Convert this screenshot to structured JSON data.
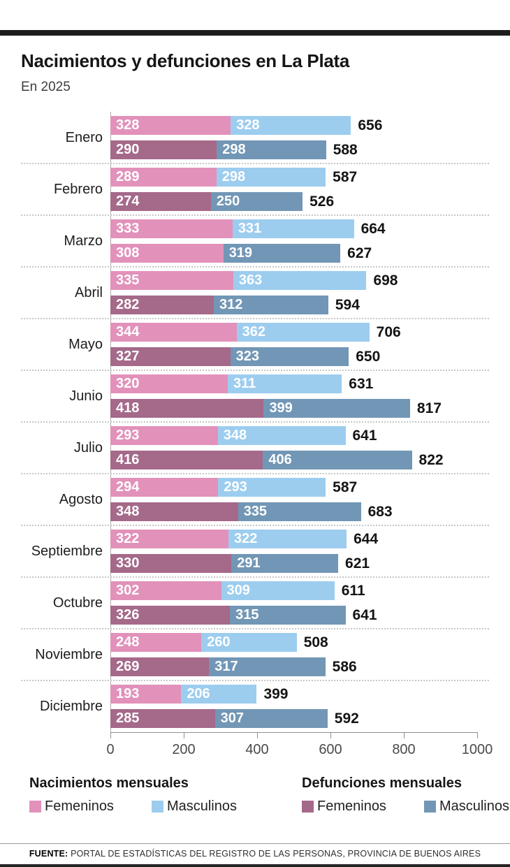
{
  "page": {
    "title": "Nacimientos y defunciones en La Plata",
    "subtitle": "En 2025",
    "source_label": "FUENTE:",
    "source_text": " PORTAL DE ESTADÍSTICAS DEL REGISTRO DE LAS PERSONAS, PROVINCIA DE BUENOS AIRES"
  },
  "colors": {
    "births_female": "#e291ba",
    "births_male": "#9ccdef",
    "deaths_female": "#a5698a",
    "deaths_male": "#7296b5",
    "accent_bar": "#1c1c1c"
  },
  "legend": {
    "births_header": "Nacimientos mensuales",
    "deaths_header": "Defunciones mensuales",
    "female_label": "Femeninos",
    "male_label": "Masculinos"
  },
  "chart_data": {
    "type": "bar",
    "orientation": "horizontal",
    "stacked": true,
    "title": "Nacimientos y defunciones en La Plata",
    "subtitle": "En 2025",
    "grid": false,
    "legend_position": "bottom",
    "x_axis": {
      "ticks": [
        0,
        200,
        400,
        600,
        800,
        1000
      ],
      "max": 1000
    },
    "series_note": "Each month has two stacked bars: births (female+male) and deaths (female+male); totals labeled at bar end",
    "months": [
      {
        "name": "Enero",
        "births": {
          "female": 328,
          "male": 328,
          "total": 656
        },
        "deaths": {
          "female": 290,
          "male": 298,
          "total": 588
        }
      },
      {
        "name": "Febrero",
        "births": {
          "female": 289,
          "male": 298,
          "total": 587
        },
        "deaths": {
          "female": 274,
          "male": 250,
          "total": 526
        }
      },
      {
        "name": "Marzo",
        "births": {
          "female": 333,
          "male": 331,
          "total": 664
        },
        "deaths": {
          "female": 308,
          "male": 319,
          "total": 627
        },
        "deaths_female_color_override": "births_female"
      },
      {
        "name": "Abril",
        "births": {
          "female": 335,
          "male": 363,
          "total": 698
        },
        "deaths": {
          "female": 282,
          "male": 312,
          "total": 594
        }
      },
      {
        "name": "Mayo",
        "births": {
          "female": 344,
          "male": 362,
          "total": 706
        },
        "deaths": {
          "female": 327,
          "male": 323,
          "total": 650
        }
      },
      {
        "name": "Junio",
        "births": {
          "female": 320,
          "male": 311,
          "total": 631
        },
        "deaths": {
          "female": 418,
          "male": 399,
          "total": 817
        }
      },
      {
        "name": "Julio",
        "births": {
          "female": 293,
          "male": 348,
          "total": 641
        },
        "deaths": {
          "female": 416,
          "male": 406,
          "total": 822
        }
      },
      {
        "name": "Agosto",
        "births": {
          "female": 294,
          "male": 293,
          "total": 587
        },
        "deaths": {
          "female": 348,
          "male": 335,
          "total": 683
        }
      },
      {
        "name": "Septiembre",
        "births": {
          "female": 322,
          "male": 322,
          "total": 644
        },
        "deaths": {
          "female": 330,
          "male": 291,
          "total": 621
        }
      },
      {
        "name": "Octubre",
        "births": {
          "female": 302,
          "male": 309,
          "total": 611
        },
        "deaths": {
          "female": 326,
          "male": 315,
          "total": 641
        }
      },
      {
        "name": "Noviembre",
        "births": {
          "female": 248,
          "male": 260,
          "total": 508
        },
        "deaths": {
          "female": 269,
          "male": 317,
          "total": 586
        }
      },
      {
        "name": "Diciembre",
        "births": {
          "female": 193,
          "male": 206,
          "total": 399
        },
        "deaths": {
          "female": 285,
          "male": 307,
          "total": 592
        }
      }
    ]
  }
}
